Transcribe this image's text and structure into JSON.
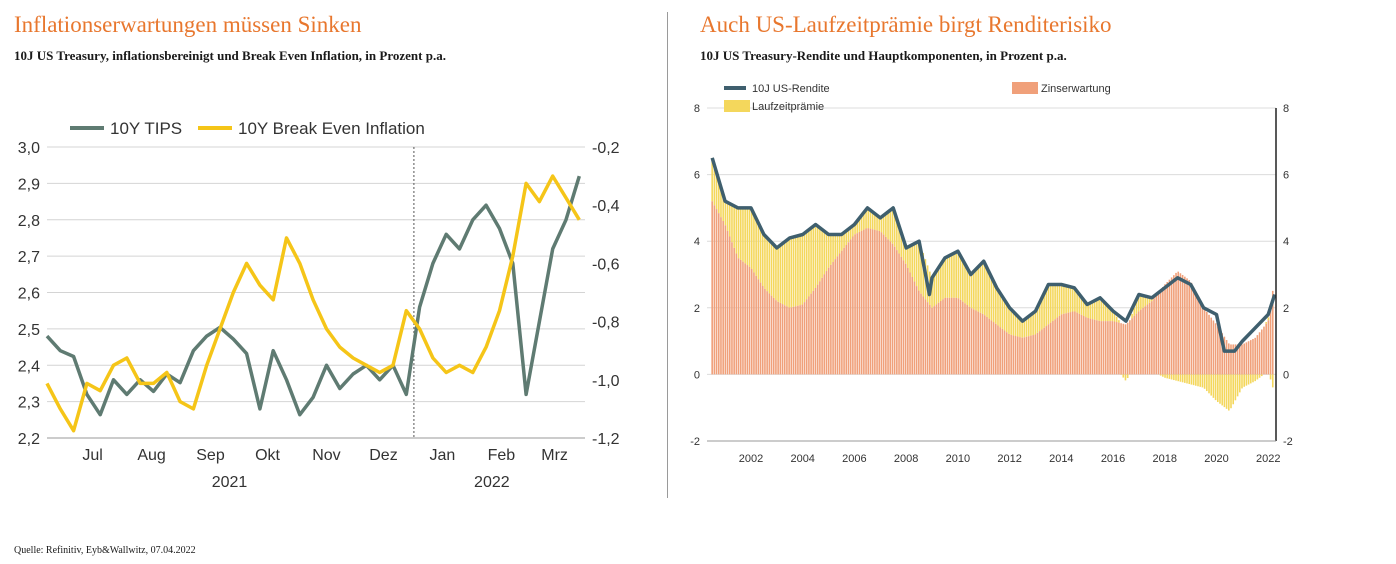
{
  "left": {
    "title": "Inflationserwartungen müssen Sinken",
    "subtitle": "10J US Treasury, inflationsbereinigt und Break Even Inflation, in Prozent p.a."
  },
  "right": {
    "title": "Auch US-Laufzeitprämie birgt Renditerisiko",
    "subtitle": "10J US Treasury-Rendite und Hauptkomponenten, in Prozent p.a."
  },
  "source": "Quelle: Refinitiv, Eyb&Wallwitz, 07.04.2022",
  "colors": {
    "accent": "#e8772e",
    "tips": "#5f7b72",
    "bei": "#f5c518",
    "yield": "#3f5f6e",
    "expectation": "#f0a07a",
    "premium": "#f4d75c"
  },
  "chart_data": [
    {
      "type": "line",
      "legend_position": "top-left",
      "grid": "horizontal",
      "x_ticks": [
        "Jul",
        "Aug",
        "Sep",
        "Okt",
        "Nov",
        "Dez",
        "Jan",
        "Feb",
        "Mrz"
      ],
      "year_labels": [
        "2021",
        "2022"
      ],
      "y_left_ticks": [
        "3,0",
        "2,9",
        "2,8",
        "2,7",
        "2,6",
        "2,5",
        "2,4",
        "2,3",
        "2,2"
      ],
      "y_right_ticks": [
        "-0,2",
        "-0,4",
        "-0,6",
        "-0,8",
        "-1,0",
        "-1,2"
      ],
      "y_left_range": [
        2.2,
        3.0
      ],
      "y_right_range": [
        -1.2,
        -0.2
      ],
      "series": [
        {
          "name": "10Y TIPS",
          "axis": "right",
          "x": [
            "2021-06-21",
            "2021-06-28",
            "2021-07-05",
            "2021-07-12",
            "2021-07-19",
            "2021-07-26",
            "2021-08-02",
            "2021-08-09",
            "2021-08-16",
            "2021-08-23",
            "2021-08-30",
            "2021-09-06",
            "2021-09-13",
            "2021-09-20",
            "2021-09-27",
            "2021-10-04",
            "2021-10-11",
            "2021-10-18",
            "2021-10-25",
            "2021-11-01",
            "2021-11-08",
            "2021-11-15",
            "2021-11-22",
            "2021-11-29",
            "2021-12-06",
            "2021-12-13",
            "2021-12-20",
            "2021-12-27",
            "2022-01-03",
            "2022-01-10",
            "2022-01-17",
            "2022-01-24",
            "2022-01-31",
            "2022-02-07",
            "2022-02-14",
            "2022-02-21",
            "2022-02-28",
            "2022-03-07",
            "2022-03-14",
            "2022-03-21",
            "2022-03-28"
          ],
          "values": [
            -0.85,
            -0.9,
            -0.92,
            -1.05,
            -1.12,
            -1.0,
            -1.05,
            -1.0,
            -1.04,
            -0.98,
            -1.01,
            -0.9,
            -0.85,
            -0.82,
            -0.86,
            -0.91,
            -1.1,
            -0.9,
            -1.0,
            -1.12,
            -1.06,
            -0.95,
            -1.03,
            -0.98,
            -0.95,
            -1.0,
            -0.95,
            -1.05,
            -0.75,
            -0.6,
            -0.5,
            -0.55,
            -0.45,
            -0.4,
            -0.48,
            -0.6,
            -1.05,
            -0.8,
            -0.55,
            -0.45,
            -0.3
          ]
        },
        {
          "name": "10Y Break Even Inflation",
          "axis": "left",
          "x": [
            "2021-06-21",
            "2021-06-28",
            "2021-07-05",
            "2021-07-12",
            "2021-07-19",
            "2021-07-26",
            "2021-08-02",
            "2021-08-09",
            "2021-08-16",
            "2021-08-23",
            "2021-08-30",
            "2021-09-06",
            "2021-09-13",
            "2021-09-20",
            "2021-09-27",
            "2021-10-04",
            "2021-10-11",
            "2021-10-18",
            "2021-10-25",
            "2021-11-01",
            "2021-11-08",
            "2021-11-15",
            "2021-11-22",
            "2021-11-29",
            "2021-12-06",
            "2021-12-13",
            "2021-12-20",
            "2021-12-27",
            "2022-01-03",
            "2022-01-10",
            "2022-01-17",
            "2022-01-24",
            "2022-01-31",
            "2022-02-07",
            "2022-02-14",
            "2022-02-21",
            "2022-02-28",
            "2022-03-07",
            "2022-03-14",
            "2022-03-21",
            "2022-03-28"
          ],
          "values": [
            2.35,
            2.28,
            2.22,
            2.35,
            2.33,
            2.4,
            2.42,
            2.35,
            2.35,
            2.38,
            2.3,
            2.28,
            2.4,
            2.5,
            2.6,
            2.68,
            2.62,
            2.58,
            2.75,
            2.68,
            2.58,
            2.5,
            2.45,
            2.42,
            2.4,
            2.38,
            2.4,
            2.55,
            2.5,
            2.42,
            2.38,
            2.4,
            2.38,
            2.45,
            2.55,
            2.7,
            2.9,
            2.85,
            2.92,
            2.86,
            2.8
          ]
        }
      ]
    },
    {
      "type": "line",
      "legend_position": "top",
      "grid": "horizontal",
      "x_ticks": [
        "2002",
        "2004",
        "2006",
        "2008",
        "2010",
        "2012",
        "2014",
        "2016",
        "2018",
        "2020",
        "2022"
      ],
      "y_left_ticks": [
        "8",
        "6",
        "4",
        "2",
        "0",
        "-2"
      ],
      "y_right_ticks": [
        "8",
        "6",
        "4",
        "2",
        "0",
        "-2"
      ],
      "y_range": [
        -2,
        8
      ],
      "series": [
        {
          "name": "10J US-Rendite",
          "style": "line",
          "x": [
            2000.5,
            2001.0,
            2001.5,
            2002.0,
            2002.5,
            2003.0,
            2003.5,
            2004.0,
            2004.5,
            2005.0,
            2005.5,
            2006.0,
            2006.5,
            2007.0,
            2007.5,
            2008.0,
            2008.5,
            2008.9,
            2009.0,
            2009.5,
            2010.0,
            2010.5,
            2011.0,
            2011.5,
            2012.0,
            2012.5,
            2013.0,
            2013.5,
            2014.0,
            2014.5,
            2015.0,
            2015.5,
            2016.0,
            2016.5,
            2017.0,
            2017.5,
            2018.0,
            2018.5,
            2019.0,
            2019.5,
            2020.0,
            2020.3,
            2020.7,
            2021.0,
            2021.5,
            2022.0,
            2022.25
          ],
          "values": [
            6.5,
            5.2,
            5.0,
            5.0,
            4.2,
            3.8,
            4.1,
            4.2,
            4.5,
            4.2,
            4.2,
            4.5,
            5.0,
            4.7,
            5.0,
            3.8,
            4.0,
            2.4,
            2.9,
            3.5,
            3.7,
            3.0,
            3.4,
            2.6,
            2.0,
            1.6,
            1.9,
            2.7,
            2.7,
            2.6,
            2.1,
            2.3,
            1.9,
            1.6,
            2.4,
            2.3,
            2.6,
            2.9,
            2.7,
            2.0,
            1.8,
            0.7,
            0.7,
            1.0,
            1.4,
            1.8,
            2.4
          ]
        },
        {
          "name": "Zinserwartung",
          "style": "bars",
          "x": [
            2000.5,
            2001.0,
            2001.5,
            2002.0,
            2002.5,
            2003.0,
            2003.5,
            2004.0,
            2004.5,
            2005.0,
            2005.5,
            2006.0,
            2006.5,
            2007.0,
            2007.5,
            2008.0,
            2008.5,
            2009.0,
            2009.5,
            2010.0,
            2010.5,
            2011.0,
            2011.5,
            2012.0,
            2012.5,
            2013.0,
            2013.5,
            2014.0,
            2014.5,
            2015.0,
            2015.5,
            2016.0,
            2016.5,
            2017.0,
            2017.5,
            2018.0,
            2018.5,
            2019.0,
            2019.5,
            2020.0,
            2020.5,
            2021.0,
            2021.5,
            2022.0,
            2022.25
          ],
          "values": [
            5.2,
            4.5,
            3.5,
            3.2,
            2.6,
            2.2,
            2.0,
            2.1,
            2.6,
            3.2,
            3.7,
            4.2,
            4.4,
            4.3,
            3.9,
            3.3,
            2.5,
            2.0,
            2.3,
            2.3,
            2.0,
            1.8,
            1.5,
            1.2,
            1.1,
            1.2,
            1.5,
            1.8,
            1.9,
            1.7,
            1.6,
            1.6,
            1.5,
            1.9,
            2.2,
            2.7,
            3.1,
            2.8,
            2.0,
            1.5,
            0.9,
            0.9,
            1.1,
            1.6,
            2.9
          ]
        },
        {
          "name": "Laufzeitprämie",
          "style": "bars",
          "x": [
            2000.5,
            2001.0,
            2001.5,
            2002.0,
            2002.5,
            2003.0,
            2003.5,
            2004.0,
            2004.5,
            2005.0,
            2005.5,
            2006.0,
            2006.5,
            2007.0,
            2007.5,
            2008.0,
            2008.5,
            2009.0,
            2009.5,
            2010.0,
            2010.5,
            2011.0,
            2011.5,
            2012.0,
            2012.5,
            2013.0,
            2013.5,
            2014.0,
            2014.5,
            2015.0,
            2015.5,
            2016.0,
            2016.5,
            2017.0,
            2017.5,
            2018.0,
            2018.5,
            2019.0,
            2019.5,
            2020.0,
            2020.5,
            2021.0,
            2021.5,
            2022.0,
            2022.25
          ],
          "values": [
            1.3,
            0.7,
            1.5,
            1.8,
            1.6,
            1.6,
            2.1,
            2.1,
            1.9,
            1.0,
            0.5,
            0.3,
            0.6,
            0.4,
            1.1,
            0.5,
            1.5,
            0.9,
            1.2,
            1.4,
            1.0,
            1.6,
            1.1,
            0.8,
            0.5,
            0.7,
            1.2,
            0.9,
            0.7,
            0.4,
            0.7,
            0.3,
            -0.2,
            0.5,
            0.1,
            -0.1,
            -0.2,
            -0.3,
            -0.4,
            -0.8,
            -1.1,
            -0.4,
            -0.2,
            0.1,
            -0.6
          ]
        }
      ]
    }
  ]
}
